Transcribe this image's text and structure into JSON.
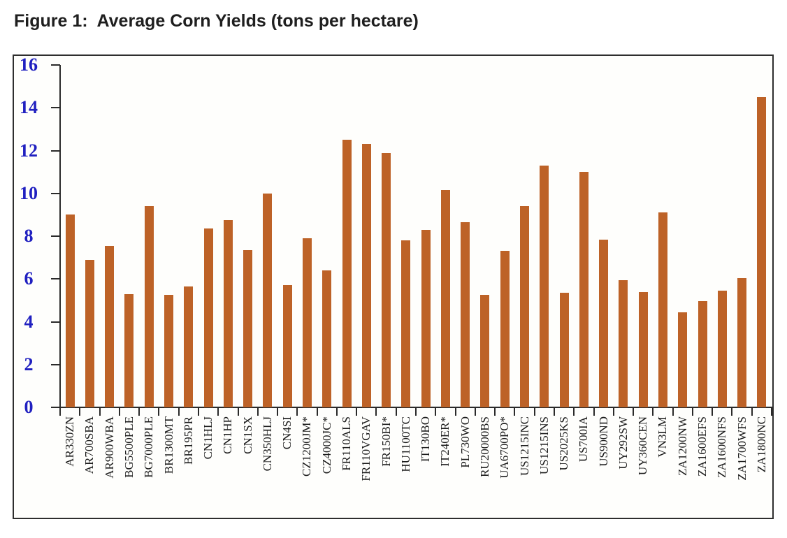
{
  "title": "Figure 1:  Average Corn Yields (tons per hectare)",
  "colors": {
    "bar": "#bd6227",
    "axis": "#2a2a2a",
    "y_tick_label": "#2020c0",
    "x_tick_label": "#1c1c1c",
    "frame_border": "#2e2e2e",
    "title_text": "#1f1f1f"
  },
  "chart_data": {
    "type": "bar",
    "title": "Figure 1:  Average Corn Yields (tons per hectare)",
    "xlabel": "",
    "ylabel": "",
    "ylim": [
      0,
      16
    ],
    "yticks": [
      0,
      2,
      4,
      6,
      8,
      10,
      12,
      14,
      16
    ],
    "grid": false,
    "legend": false,
    "bar_color": "#bd6227",
    "x_label_rotation": 90,
    "categories": [
      "AR330ZN",
      "AR700SBA",
      "AR900WBA",
      "BG5500PLE",
      "BG7000PLE",
      "BR1300MT",
      "BR195PR",
      "CN1HLJ",
      "CN1HP",
      "CN1SX",
      "CN350HLJ",
      "CN4SI",
      "CZ1200JM*",
      "CZ4000JC*",
      "FR110ALS",
      "FR110VGAV",
      "FR150BI*",
      "HU1100TC",
      "IT130BO",
      "IT240ER*",
      "PL730WO",
      "RU20000BS",
      "UA6700PO*",
      "US1215INC",
      "US1215INS",
      "US2025KS",
      "US700IA",
      "US900ND",
      "UY292SW",
      "UY360CEN",
      "VN3LM",
      "ZA1200NW",
      "ZA1600EFS",
      "ZA1600NFS",
      "ZA1700WFS",
      "ZA1800NC"
    ],
    "values": [
      9.0,
      6.9,
      7.55,
      5.3,
      9.4,
      5.25,
      5.65,
      8.35,
      8.75,
      7.35,
      10.0,
      5.7,
      7.9,
      6.4,
      12.5,
      12.3,
      11.9,
      7.8,
      8.3,
      10.15,
      8.65,
      5.25,
      7.3,
      9.4,
      11.3,
      5.35,
      11.0,
      7.85,
      5.95,
      5.4,
      9.1,
      4.45,
      4.95,
      5.45,
      6.05,
      14.5
    ]
  }
}
